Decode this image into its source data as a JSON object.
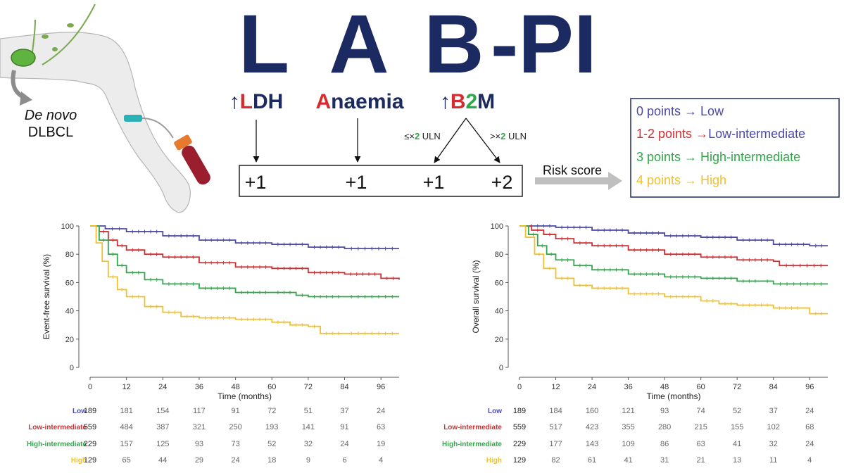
{
  "colors": {
    "navy": "#1c2a62",
    "low": "#4b4aa6",
    "low_intermediate": "#d42c2f",
    "high_intermediate": "#2fa84a",
    "high": "#f1c12b",
    "axis": "#555555",
    "skin": "#ececec",
    "arrow_grey": "#bfbfbf"
  },
  "header": {
    "title_letters": [
      "L",
      "A",
      "B"
    ],
    "title_suffix": "-PI",
    "factors": {
      "ldh": {
        "arrow": "↑",
        "initial": "L",
        "rest": "DH"
      },
      "anaemia": {
        "initial": "A",
        "rest": "naemia"
      },
      "b2m": {
        "arrow": "↑",
        "b": "B",
        "two": "2",
        "m": "M"
      }
    }
  },
  "illustration": {
    "label_italic": "De novo",
    "label_plain": "DLBCL"
  },
  "b2m_branches": {
    "left": {
      "prefix": "≤×",
      "num": "2",
      "suffix": " ULN"
    },
    "right": {
      "prefix": ">×",
      "num": "2",
      "suffix": " ULN"
    }
  },
  "points": [
    "+1",
    "+1",
    "+1",
    "+2"
  ],
  "risk_score_label": "Risk score",
  "risk_legend": [
    {
      "text": "0 points → Low",
      "color": "#4b4aa6"
    },
    {
      "text": "1-2 points →Low-intermediate",
      "color": "#d42c2f",
      "tail_color": "#4b4aa6"
    },
    {
      "text": "3 points →  High-intermediate",
      "color": "#2fa84a"
    },
    {
      "text": "4 points → High",
      "color": "#f1c12b"
    }
  ],
  "chart_data": [
    {
      "type": "line",
      "title": "",
      "xlabel": "Time (months)",
      "ylabel": "Event-free survival (%)",
      "xlim": [
        0,
        102
      ],
      "ylim": [
        0,
        100
      ],
      "x_ticks": [
        0,
        12,
        24,
        36,
        48,
        60,
        72,
        84,
        96
      ],
      "y_ticks": [
        0,
        20,
        40,
        60,
        80,
        100
      ],
      "series": [
        {
          "name": "Low",
          "color": "#4b4aa6",
          "points": [
            [
              0,
              100
            ],
            [
              5,
              98
            ],
            [
              12,
              96
            ],
            [
              24,
              93
            ],
            [
              36,
              90
            ],
            [
              48,
              88
            ],
            [
              60,
              87
            ],
            [
              72,
              85
            ],
            [
              84,
              84
            ],
            [
              102,
              84
            ]
          ]
        },
        {
          "name": "Low-intermediate",
          "color": "#d42c2f",
          "points": [
            [
              0,
              100
            ],
            [
              3,
              96
            ],
            [
              6,
              90
            ],
            [
              9,
              86
            ],
            [
              12,
              83
            ],
            [
              18,
              80
            ],
            [
              24,
              78
            ],
            [
              36,
              74
            ],
            [
              48,
              71
            ],
            [
              60,
              70
            ],
            [
              72,
              67
            ],
            [
              84,
              66
            ],
            [
              96,
              63
            ],
            [
              102,
              62
            ]
          ]
        },
        {
          "name": "High-intermediate",
          "color": "#2fa84a",
          "points": [
            [
              0,
              100
            ],
            [
              3,
              90
            ],
            [
              6,
              80
            ],
            [
              9,
              72
            ],
            [
              12,
              67
            ],
            [
              18,
              62
            ],
            [
              24,
              59
            ],
            [
              36,
              56
            ],
            [
              48,
              53
            ],
            [
              60,
              53
            ],
            [
              68,
              51
            ],
            [
              72,
              50
            ],
            [
              84,
              50
            ],
            [
              102,
              50
            ]
          ]
        },
        {
          "name": "High",
          "color": "#f1c12b",
          "points": [
            [
              0,
              100
            ],
            [
              2,
              88
            ],
            [
              4,
              75
            ],
            [
              6,
              64
            ],
            [
              9,
              55
            ],
            [
              12,
              50
            ],
            [
              18,
              43
            ],
            [
              24,
              39
            ],
            [
              30,
              36
            ],
            [
              36,
              35
            ],
            [
              48,
              34
            ],
            [
              60,
              32
            ],
            [
              66,
              30
            ],
            [
              72,
              29
            ],
            [
              76,
              24
            ],
            [
              84,
              24
            ],
            [
              102,
              24
            ]
          ]
        }
      ],
      "risk_table": {
        "times": [
          0,
          12,
          24,
          36,
          48,
          60,
          72,
          84,
          96
        ],
        "rows": [
          {
            "label": "Low",
            "color": "#4b4aa6",
            "values": [
              "189",
              "181",
              "154",
              "117",
              "91",
              "72",
              "51",
              "37",
              "24"
            ]
          },
          {
            "label": "Low-intermediate",
            "color": "#d42c2f",
            "values": [
              "559",
              "484",
              "387",
              "321",
              "250",
              "193",
              "141",
              "91",
              "63"
            ]
          },
          {
            "label": "High-intermediate",
            "color": "#2fa84a",
            "values": [
              "229",
              "157",
              "125",
              "93",
              "73",
              "52",
              "32",
              "24",
              "19"
            ]
          },
          {
            "label": "High",
            "color": "#f1c12b",
            "values": [
              "129",
              "65",
              "44",
              "29",
              "24",
              "18",
              "9",
              "6",
              "4"
            ]
          }
        ]
      }
    },
    {
      "type": "line",
      "title": "",
      "xlabel": "Time (months)",
      "ylabel": "Overall survival (%)",
      "xlim": [
        0,
        102
      ],
      "ylim": [
        0,
        100
      ],
      "x_ticks": [
        0,
        12,
        24,
        36,
        48,
        60,
        72,
        84,
        96
      ],
      "y_ticks": [
        0,
        20,
        40,
        60,
        80,
        100
      ],
      "series": [
        {
          "name": "Low",
          "color": "#4b4aa6",
          "points": [
            [
              0,
              100
            ],
            [
              12,
              99
            ],
            [
              24,
              97
            ],
            [
              36,
              95
            ],
            [
              48,
              93
            ],
            [
              60,
              92
            ],
            [
              72,
              90
            ],
            [
              84,
              87
            ],
            [
              96,
              86
            ],
            [
              102,
              86
            ]
          ]
        },
        {
          "name": "Low-intermediate",
          "color": "#d42c2f",
          "points": [
            [
              0,
              100
            ],
            [
              4,
              97
            ],
            [
              8,
              94
            ],
            [
              12,
              91
            ],
            [
              18,
              88
            ],
            [
              24,
              86
            ],
            [
              36,
              83
            ],
            [
              48,
              80
            ],
            [
              60,
              78
            ],
            [
              72,
              76
            ],
            [
              84,
              75
            ],
            [
              86,
              72
            ],
            [
              102,
              72
            ]
          ]
        },
        {
          "name": "High-intermediate",
          "color": "#2fa84a",
          "points": [
            [
              0,
              100
            ],
            [
              3,
              94
            ],
            [
              6,
              86
            ],
            [
              9,
              80
            ],
            [
              12,
              76
            ],
            [
              18,
              72
            ],
            [
              24,
              69
            ],
            [
              36,
              66
            ],
            [
              48,
              64
            ],
            [
              60,
              63
            ],
            [
              72,
              61
            ],
            [
              80,
              61
            ],
            [
              84,
              59
            ],
            [
              102,
              59
            ]
          ]
        },
        {
          "name": "High",
          "color": "#f1c12b",
          "points": [
            [
              0,
              100
            ],
            [
              2,
              92
            ],
            [
              5,
              80
            ],
            [
              8,
              70
            ],
            [
              12,
              63
            ],
            [
              18,
              58
            ],
            [
              24,
              56
            ],
            [
              36,
              52
            ],
            [
              48,
              50
            ],
            [
              60,
              47
            ],
            [
              66,
              45
            ],
            [
              72,
              44
            ],
            [
              84,
              42
            ],
            [
              94,
              42
            ],
            [
              96,
              38
            ],
            [
              102,
              38
            ]
          ]
        }
      ],
      "risk_table": {
        "times": [
          0,
          12,
          24,
          36,
          48,
          60,
          72,
          84,
          96
        ],
        "rows": [
          {
            "label": "Low",
            "color": "#4b4aa6",
            "values": [
              "189",
              "184",
              "160",
              "121",
              "93",
              "74",
              "52",
              "37",
              "24"
            ]
          },
          {
            "label": "Low-intermediate",
            "color": "#d42c2f",
            "values": [
              "559",
              "517",
              "423",
              "355",
              "280",
              "215",
              "155",
              "102",
              "68"
            ]
          },
          {
            "label": "High-intermediate",
            "color": "#2fa84a",
            "values": [
              "229",
              "177",
              "143",
              "109",
              "86",
              "63",
              "41",
              "32",
              "24"
            ]
          },
          {
            "label": "High",
            "color": "#f1c12b",
            "values": [
              "129",
              "82",
              "61",
              "41",
              "31",
              "21",
              "13",
              "11",
              "4"
            ]
          }
        ]
      }
    }
  ]
}
